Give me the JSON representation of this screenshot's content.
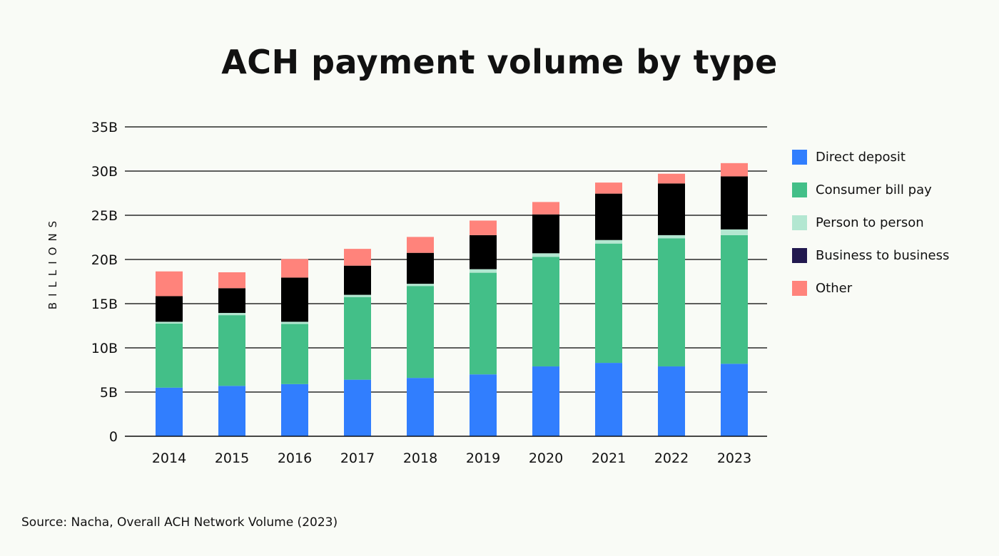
{
  "chart_data": {
    "type": "bar",
    "stacked": true,
    "title": "ACH payment volume by type",
    "xlabel": "",
    "ylabel": "BILLIONS",
    "ylim": [
      0,
      35
    ],
    "yticks": [
      0,
      5,
      10,
      15,
      20,
      25,
      30,
      35
    ],
    "ytick_labels": [
      "0",
      "5B",
      "10B",
      "15B",
      "20B",
      "25B",
      "30B",
      "35B"
    ],
    "grid": true,
    "legend_position": "right",
    "categories": [
      "2014",
      "2015",
      "2016",
      "2017",
      "2018",
      "2019",
      "2020",
      "2021",
      "2022",
      "2023"
    ],
    "series": [
      {
        "name": "Direct deposit",
        "color": "#317efe",
        "bar_color": "#317efe",
        "values": [
          5.5,
          5.7,
          5.9,
          6.4,
          6.6,
          7.0,
          7.9,
          8.3,
          7.9,
          8.2
        ]
      },
      {
        "name": "Consumer bill pay",
        "color": "#43bf88",
        "bar_color": "#43bf88",
        "values": [
          7.25,
          8.0,
          6.8,
          9.35,
          10.4,
          11.5,
          12.4,
          13.5,
          14.5,
          14.55
        ]
      },
      {
        "name": "Person to person",
        "color": "#b3e7d1",
        "bar_color": "#b3e7d1",
        "values": [
          0.2,
          0.25,
          0.25,
          0.25,
          0.25,
          0.4,
          0.4,
          0.4,
          0.35,
          0.65
        ]
      },
      {
        "name": "Business to business",
        "color": "#22194f",
        "bar_color": "#000000",
        "values": [
          2.9,
          2.8,
          5.0,
          3.3,
          3.5,
          3.85,
          4.4,
          5.25,
          5.85,
          6.0
        ]
      },
      {
        "name": "Other",
        "color": "#ff837b",
        "bar_color": "#ff837b",
        "values": [
          2.8,
          1.8,
          2.1,
          1.9,
          1.8,
          1.65,
          1.4,
          1.25,
          1.1,
          1.5
        ]
      }
    ]
  },
  "source": "Source: Nacha, Overall ACH Network Volume (2023)"
}
